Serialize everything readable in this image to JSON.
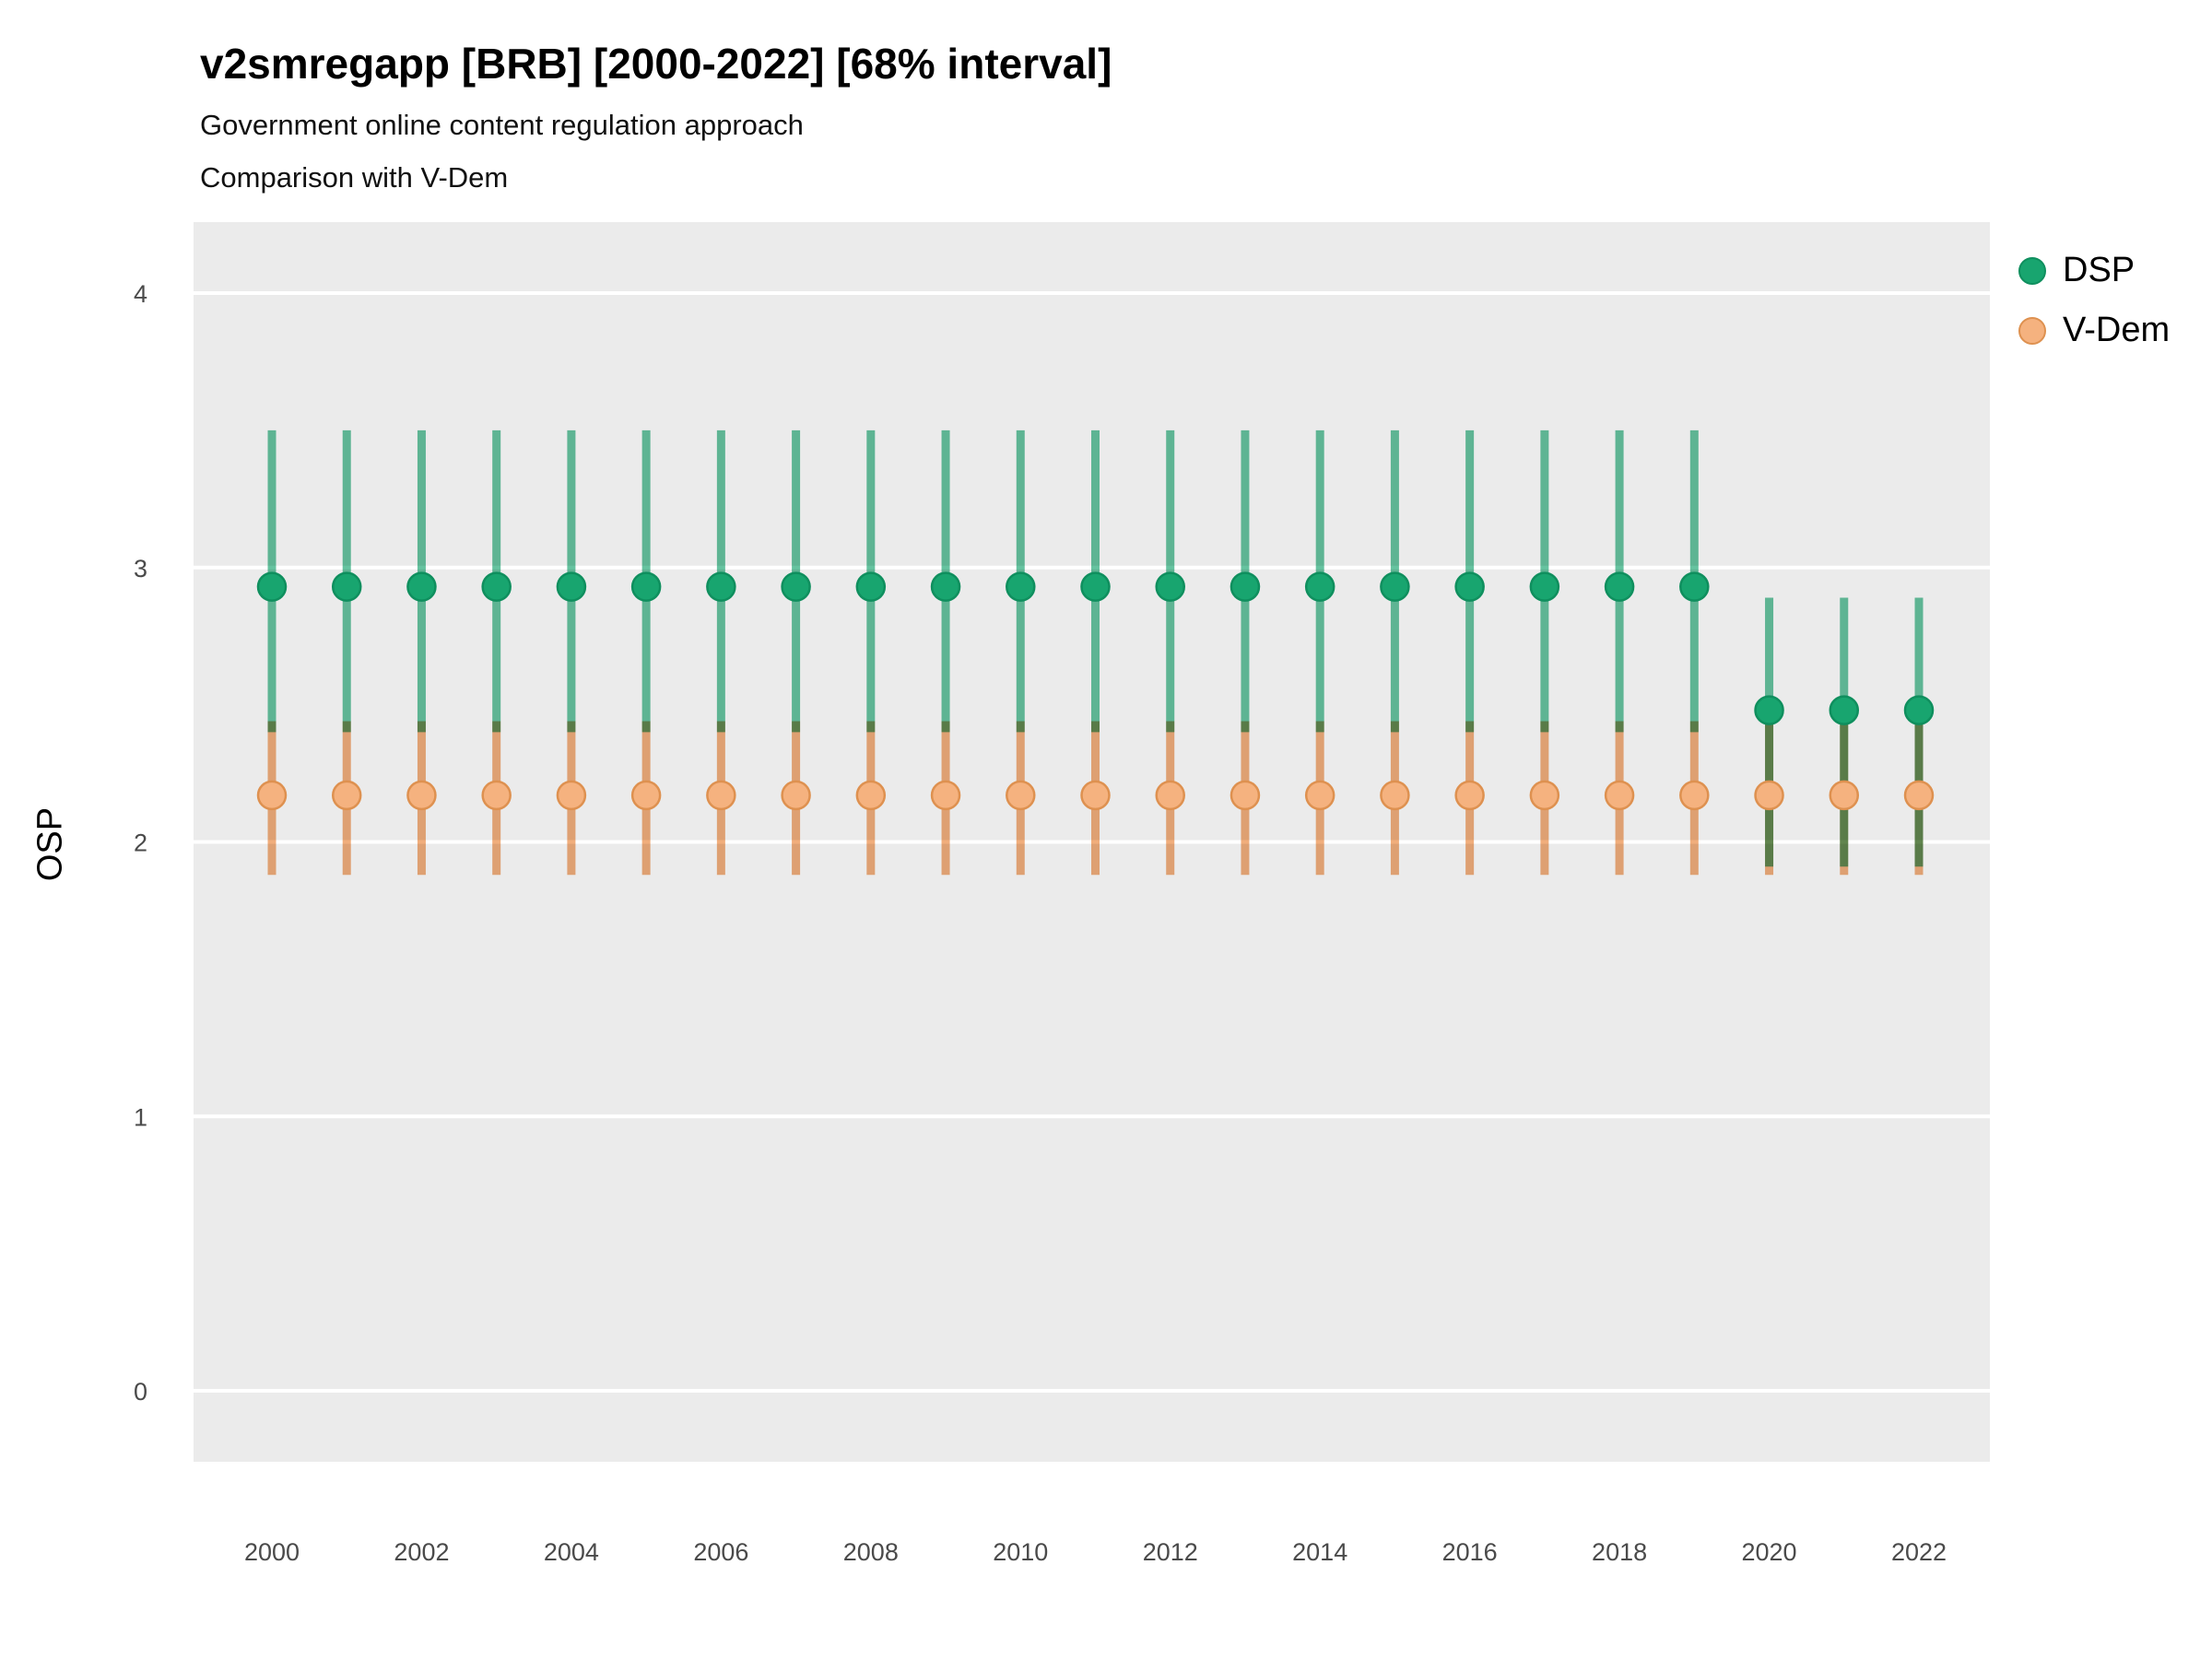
{
  "header": {
    "title": "v2smregapp [BRB] [2000-2022] [68% interval]",
    "subtitle1": "Government online content regulation approach",
    "subtitle2": "Comparison with V-Dem"
  },
  "axes": {
    "y_label": "OSP",
    "y_ticks": [
      0,
      1,
      2,
      3,
      4
    ],
    "x_ticks": [
      2000,
      2002,
      2004,
      2006,
      2008,
      2010,
      2012,
      2014,
      2016,
      2018,
      2020,
      2022
    ]
  },
  "legend": [
    {
      "label": "DSP",
      "fill": "#18a56f",
      "stroke": "#0f8f5e"
    },
    {
      "label": "V-Dem",
      "fill": "#f5b27f",
      "stroke": "#de9150"
    }
  ],
  "style": {
    "panel_bg": "#ebebeb",
    "gridline": "#ffffff",
    "tick_label_color": "#4a4a4a"
  },
  "chart_data": {
    "type": "pointrange",
    "title": "v2smregapp [BRB] [2000-2022] [68% interval]",
    "subtitle": "Government online content regulation approach — Comparison with V-Dem",
    "xlabel": "",
    "ylabel": "OSP",
    "ylim": [
      -0.26,
      4.26
    ],
    "xlim": [
      1999,
      2023
    ],
    "interval": "68%",
    "series": [
      {
        "name": "DSP",
        "point_fill": "#18a56f",
        "point_stroke": "#0f8f5e",
        "line_color": "#66c3a0",
        "points": [
          {
            "year": 2000,
            "est": 2.93,
            "lo": 2.4,
            "hi": 3.5
          },
          {
            "year": 2001,
            "est": 2.93,
            "lo": 2.4,
            "hi": 3.5
          },
          {
            "year": 2002,
            "est": 2.93,
            "lo": 2.4,
            "hi": 3.5
          },
          {
            "year": 2003,
            "est": 2.93,
            "lo": 2.4,
            "hi": 3.5
          },
          {
            "year": 2004,
            "est": 2.93,
            "lo": 2.4,
            "hi": 3.5
          },
          {
            "year": 2005,
            "est": 2.93,
            "lo": 2.4,
            "hi": 3.5
          },
          {
            "year": 2006,
            "est": 2.93,
            "lo": 2.4,
            "hi": 3.5
          },
          {
            "year": 2007,
            "est": 2.93,
            "lo": 2.4,
            "hi": 3.5
          },
          {
            "year": 2008,
            "est": 2.93,
            "lo": 2.4,
            "hi": 3.5
          },
          {
            "year": 2009,
            "est": 2.93,
            "lo": 2.4,
            "hi": 3.5
          },
          {
            "year": 2010,
            "est": 2.93,
            "lo": 2.4,
            "hi": 3.5
          },
          {
            "year": 2011,
            "est": 2.93,
            "lo": 2.4,
            "hi": 3.5
          },
          {
            "year": 2012,
            "est": 2.93,
            "lo": 2.4,
            "hi": 3.5
          },
          {
            "year": 2013,
            "est": 2.93,
            "lo": 2.4,
            "hi": 3.5
          },
          {
            "year": 2014,
            "est": 2.93,
            "lo": 2.4,
            "hi": 3.5
          },
          {
            "year": 2015,
            "est": 2.93,
            "lo": 2.4,
            "hi": 3.5
          },
          {
            "year": 2016,
            "est": 2.93,
            "lo": 2.4,
            "hi": 3.5
          },
          {
            "year": 2017,
            "est": 2.93,
            "lo": 2.4,
            "hi": 3.5
          },
          {
            "year": 2018,
            "est": 2.93,
            "lo": 2.4,
            "hi": 3.5
          },
          {
            "year": 2019,
            "est": 2.93,
            "lo": 2.4,
            "hi": 3.5
          },
          {
            "year": 2020,
            "est": 2.48,
            "lo": 1.91,
            "hi": 2.89
          },
          {
            "year": 2021,
            "est": 2.48,
            "lo": 1.91,
            "hi": 2.89
          },
          {
            "year": 2022,
            "est": 2.48,
            "lo": 1.91,
            "hi": 2.89
          }
        ]
      },
      {
        "name": "V-Dem",
        "point_fill": "#f5b27f",
        "point_stroke": "#de9150",
        "line_color": "#f1ae7c",
        "points": [
          {
            "year": 2000,
            "est": 2.17,
            "lo": 1.88,
            "hi": 2.44
          },
          {
            "year": 2001,
            "est": 2.17,
            "lo": 1.88,
            "hi": 2.44
          },
          {
            "year": 2002,
            "est": 2.17,
            "lo": 1.88,
            "hi": 2.44
          },
          {
            "year": 2003,
            "est": 2.17,
            "lo": 1.88,
            "hi": 2.44
          },
          {
            "year": 2004,
            "est": 2.17,
            "lo": 1.88,
            "hi": 2.44
          },
          {
            "year": 2005,
            "est": 2.17,
            "lo": 1.88,
            "hi": 2.44
          },
          {
            "year": 2006,
            "est": 2.17,
            "lo": 1.88,
            "hi": 2.44
          },
          {
            "year": 2007,
            "est": 2.17,
            "lo": 1.88,
            "hi": 2.44
          },
          {
            "year": 2008,
            "est": 2.17,
            "lo": 1.88,
            "hi": 2.44
          },
          {
            "year": 2009,
            "est": 2.17,
            "lo": 1.88,
            "hi": 2.44
          },
          {
            "year": 2010,
            "est": 2.17,
            "lo": 1.88,
            "hi": 2.44
          },
          {
            "year": 2011,
            "est": 2.17,
            "lo": 1.88,
            "hi": 2.44
          },
          {
            "year": 2012,
            "est": 2.17,
            "lo": 1.88,
            "hi": 2.44
          },
          {
            "year": 2013,
            "est": 2.17,
            "lo": 1.88,
            "hi": 2.44
          },
          {
            "year": 2014,
            "est": 2.17,
            "lo": 1.88,
            "hi": 2.44
          },
          {
            "year": 2015,
            "est": 2.17,
            "lo": 1.88,
            "hi": 2.44
          },
          {
            "year": 2016,
            "est": 2.17,
            "lo": 1.88,
            "hi": 2.44
          },
          {
            "year": 2017,
            "est": 2.17,
            "lo": 1.88,
            "hi": 2.44
          },
          {
            "year": 2018,
            "est": 2.17,
            "lo": 1.88,
            "hi": 2.44
          },
          {
            "year": 2019,
            "est": 2.17,
            "lo": 1.88,
            "hi": 2.44
          },
          {
            "year": 2020,
            "est": 2.17,
            "lo": 1.88,
            "hi": 2.44
          },
          {
            "year": 2021,
            "est": 2.17,
            "lo": 1.88,
            "hi": 2.44
          },
          {
            "year": 2022,
            "est": 2.17,
            "lo": 1.88,
            "hi": 2.44
          }
        ]
      }
    ]
  }
}
